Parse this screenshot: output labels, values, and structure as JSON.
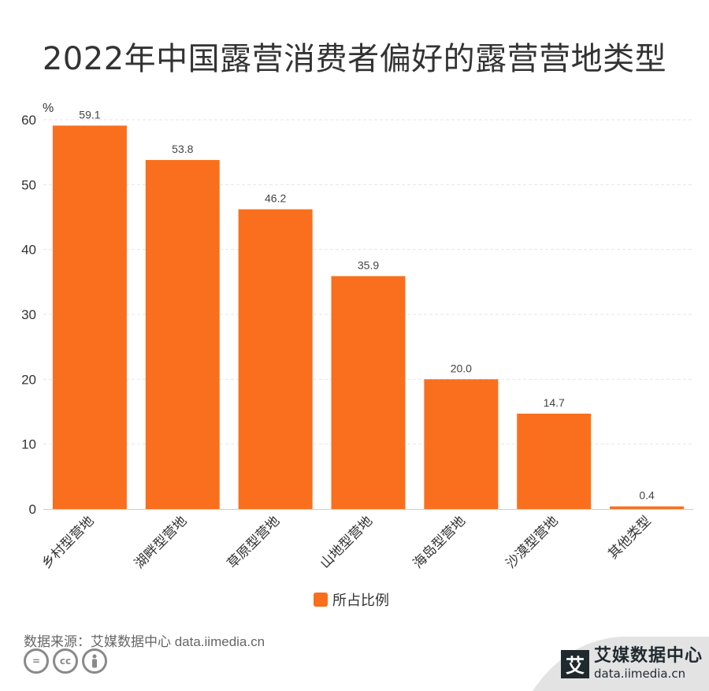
{
  "title": "2022年中国露营消费者偏好的露营营地类型",
  "colors": {
    "bar": "#fa6f1e",
    "grid": "#e6e6e6",
    "axis_text": "#333333"
  },
  "chart_data": {
    "type": "bar",
    "title": "2022年中国露营消费者偏好的露营营地类型",
    "ylabel": "%",
    "ylim": [
      0,
      60
    ],
    "yticks": [
      0,
      10,
      20,
      30,
      40,
      50,
      60
    ],
    "categories": [
      "乡村型营地",
      "湖畔型营地",
      "草原型营地",
      "山地型营地",
      "海岛型营地",
      "沙漠型营地",
      "其他类型"
    ],
    "series": [
      {
        "name": "所占比例",
        "values": [
          59.1,
          53.8,
          46.2,
          35.9,
          20.0,
          14.7,
          0.4
        ]
      }
    ],
    "value_labels": [
      "59.1",
      "53.8",
      "46.2",
      "35.9",
      "20.0",
      "14.7",
      "0.4"
    ],
    "grid": true,
    "legend": "bottom-center"
  },
  "legend": {
    "label": "所占比例"
  },
  "footer": {
    "source": "数据来源：艾媒数据中心 data.iimedia.cn",
    "cc_icons": [
      "equals-icon",
      "cc-icon",
      "person-icon"
    ],
    "brand_logo": "艾",
    "brand_name": "艾媒数据中心",
    "brand_url": "data.iimedia.cn"
  }
}
